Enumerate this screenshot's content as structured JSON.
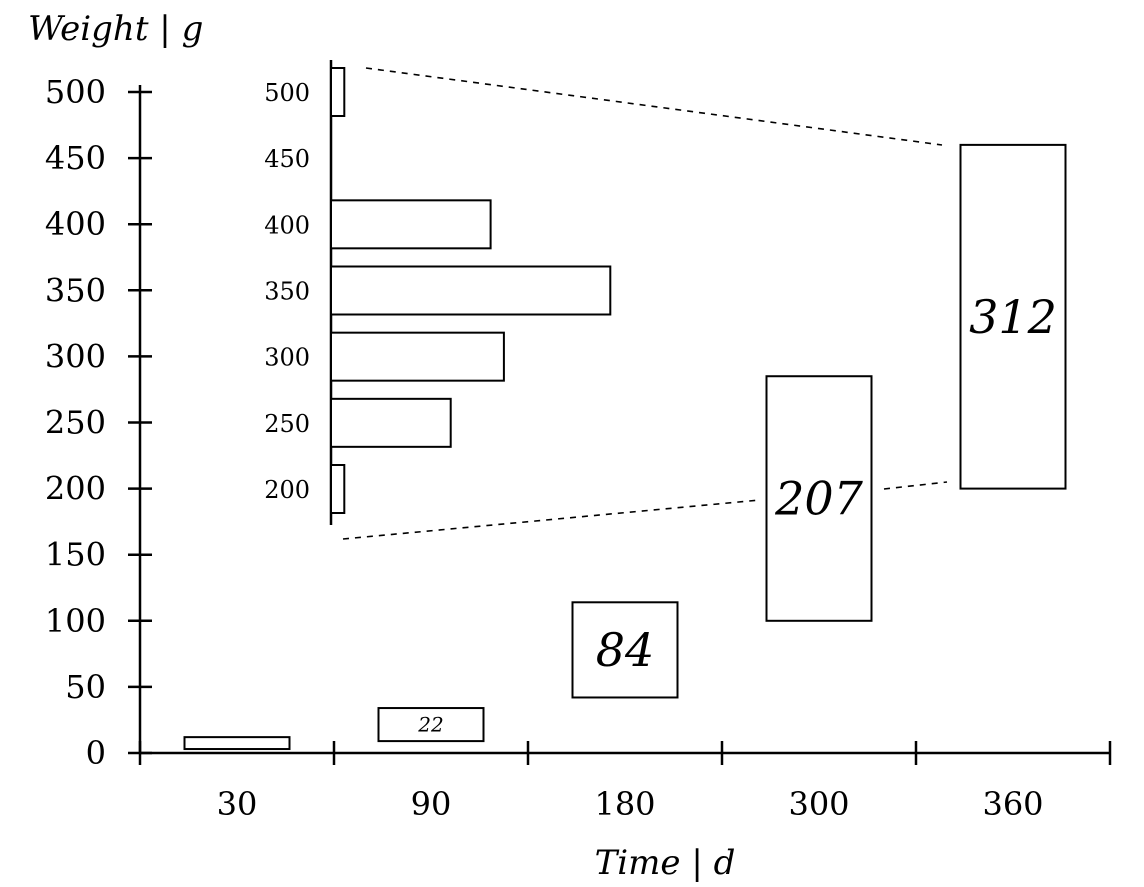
{
  "chart_data": {
    "type": "bar",
    "title": "",
    "xlabel": "Time | d",
    "ylabel": "Weight | g",
    "ylim": [
      0,
      500
    ],
    "yticks": [
      "0",
      "50",
      "100",
      "150",
      "200",
      "250",
      "300",
      "350",
      "400",
      "450",
      "500"
    ],
    "categories": [
      "30",
      "90",
      "180",
      "300",
      "360"
    ],
    "series": [
      {
        "values": [
          {
            "category": "30",
            "low": 3,
            "high": 12,
            "label": ""
          },
          {
            "category": "90",
            "low": 9,
            "high": 34,
            "label": "22"
          },
          {
            "category": "180",
            "low": 42,
            "high": 114,
            "label": "84"
          },
          {
            "category": "300",
            "low": 100,
            "high": 285,
            "label": "207"
          },
          {
            "category": "360",
            "low": 200,
            "high": 460,
            "label": "312"
          }
        ]
      }
    ],
    "inset": {
      "type": "bar",
      "orientation": "horizontal",
      "zoom_of_category": "360",
      "categories": [
        "200",
        "250",
        "300",
        "350",
        "400",
        "450",
        "500"
      ],
      "values": [
        1,
        9,
        13,
        21,
        12,
        0,
        1
      ],
      "grid": false
    },
    "grid": false,
    "legend": "none"
  }
}
